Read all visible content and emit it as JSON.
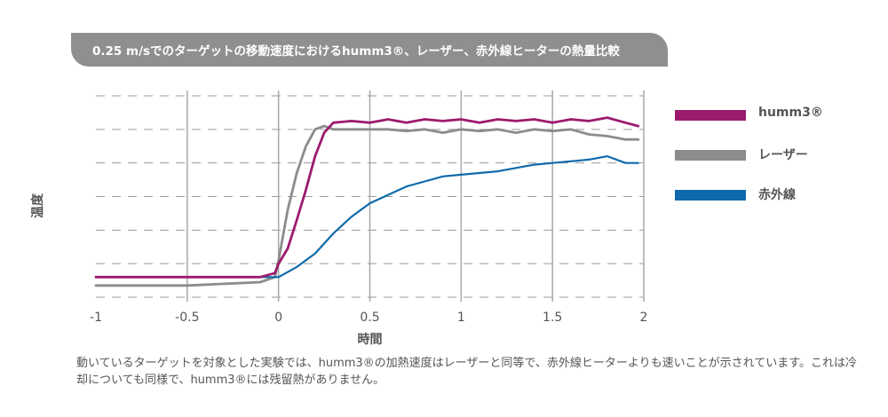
{
  "chart_data": {
    "type": "line",
    "title": "0.25 m/sでのターゲットの移動速度におけるhumm3®、レーザー、赤外線ヒーターの熱量比較",
    "xlabel": "時間",
    "ylabel": "温度",
    "xlim": [
      -1,
      2
    ],
    "ylim": [
      0,
      6
    ],
    "x_ticks": [
      "-1",
      "-0.5",
      "0",
      "0.5",
      "1",
      "1.5",
      "2"
    ],
    "grid": "vertical solid at 0.5 intervals, horizontal dashed",
    "legend_position": "right",
    "series": [
      {
        "name": "humm3®",
        "color": "#9c1a6e",
        "x": [
          -1.0,
          -0.5,
          -0.1,
          -0.02,
          0.0,
          0.05,
          0.1,
          0.15,
          0.2,
          0.25,
          0.3,
          0.4,
          0.5,
          0.6,
          0.7,
          0.8,
          0.9,
          1.0,
          1.1,
          1.2,
          1.3,
          1.4,
          1.5,
          1.6,
          1.7,
          1.8,
          1.9,
          1.97
        ],
        "y": [
          0.6,
          0.6,
          0.6,
          0.72,
          1.0,
          1.45,
          2.3,
          3.2,
          4.2,
          4.9,
          5.2,
          5.25,
          5.2,
          5.3,
          5.2,
          5.3,
          5.25,
          5.3,
          5.2,
          5.3,
          5.25,
          5.3,
          5.2,
          5.3,
          5.25,
          5.35,
          5.2,
          5.1
        ]
      },
      {
        "name": "レーザー",
        "color": "#8c8c8c",
        "x": [
          -1.0,
          -0.5,
          -0.1,
          -0.02,
          0.0,
          0.05,
          0.1,
          0.15,
          0.2,
          0.25,
          0.3,
          0.4,
          0.5,
          0.6,
          0.7,
          0.8,
          0.9,
          1.0,
          1.1,
          1.2,
          1.3,
          1.4,
          1.5,
          1.6,
          1.7,
          1.8,
          1.9,
          1.97
        ],
        "y": [
          0.35,
          0.35,
          0.45,
          0.6,
          1.1,
          2.6,
          3.7,
          4.5,
          5.0,
          5.1,
          5.0,
          5.0,
          5.0,
          5.0,
          4.95,
          5.0,
          4.9,
          5.0,
          4.95,
          5.0,
          4.9,
          5.0,
          4.95,
          5.0,
          4.85,
          4.8,
          4.7,
          4.7
        ]
      },
      {
        "name": "赤外線",
        "color": "#0e6aab",
        "x": [
          -1.0,
          -0.5,
          0.0,
          0.1,
          0.2,
          0.3,
          0.4,
          0.5,
          0.6,
          0.7,
          0.8,
          0.9,
          1.0,
          1.1,
          1.2,
          1.3,
          1.4,
          1.5,
          1.6,
          1.7,
          1.8,
          1.9,
          1.97
        ],
        "y": [
          0.6,
          0.6,
          0.6,
          0.9,
          1.3,
          1.9,
          2.4,
          2.8,
          3.05,
          3.3,
          3.45,
          3.6,
          3.65,
          3.7,
          3.75,
          3.85,
          3.95,
          4.0,
          4.05,
          4.1,
          4.2,
          4.0,
          4.0
        ]
      }
    ]
  },
  "caption": "動いているターゲットを対象とした実験では、humm3®の加熱速度はレーザーと同等で、赤外線ヒーターよりも速いことが示されています。これは冷却についても同様で、humm3®には残留熱がありません。"
}
